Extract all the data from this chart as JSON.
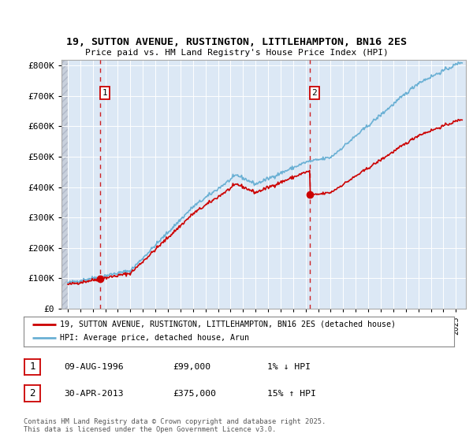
{
  "title_line1": "19, SUTTON AVENUE, RUSTINGTON, LITTLEHAMPTON, BN16 2ES",
  "title_line2": "Price paid vs. HM Land Registry's House Price Index (HPI)",
  "hpi_color": "#6ab0d4",
  "price_color": "#cc0000",
  "dashed_color": "#cc0000",
  "bg_main_color": "#dce8f5",
  "sale1_x": 1996.6,
  "sale1_price": 99000,
  "sale2_x": 2013.33,
  "sale2_price": 375000,
  "ylim_min": 0,
  "ylim_max": 820000,
  "xstart_year": 1993.5,
  "xend_year": 2025.8,
  "legend_line1": "19, SUTTON AVENUE, RUSTINGTON, LITTLEHAMPTON, BN16 2ES (detached house)",
  "legend_line2": "HPI: Average price, detached house, Arun",
  "table_row1": [
    "1",
    "09-AUG-1996",
    "£99,000",
    "1% ↓ HPI"
  ],
  "table_row2": [
    "2",
    "30-APR-2013",
    "£375,000",
    "15% ↑ HPI"
  ],
  "footer": "Contains HM Land Registry data © Crown copyright and database right 2025.\nThis data is licensed under the Open Government Licence v3.0."
}
